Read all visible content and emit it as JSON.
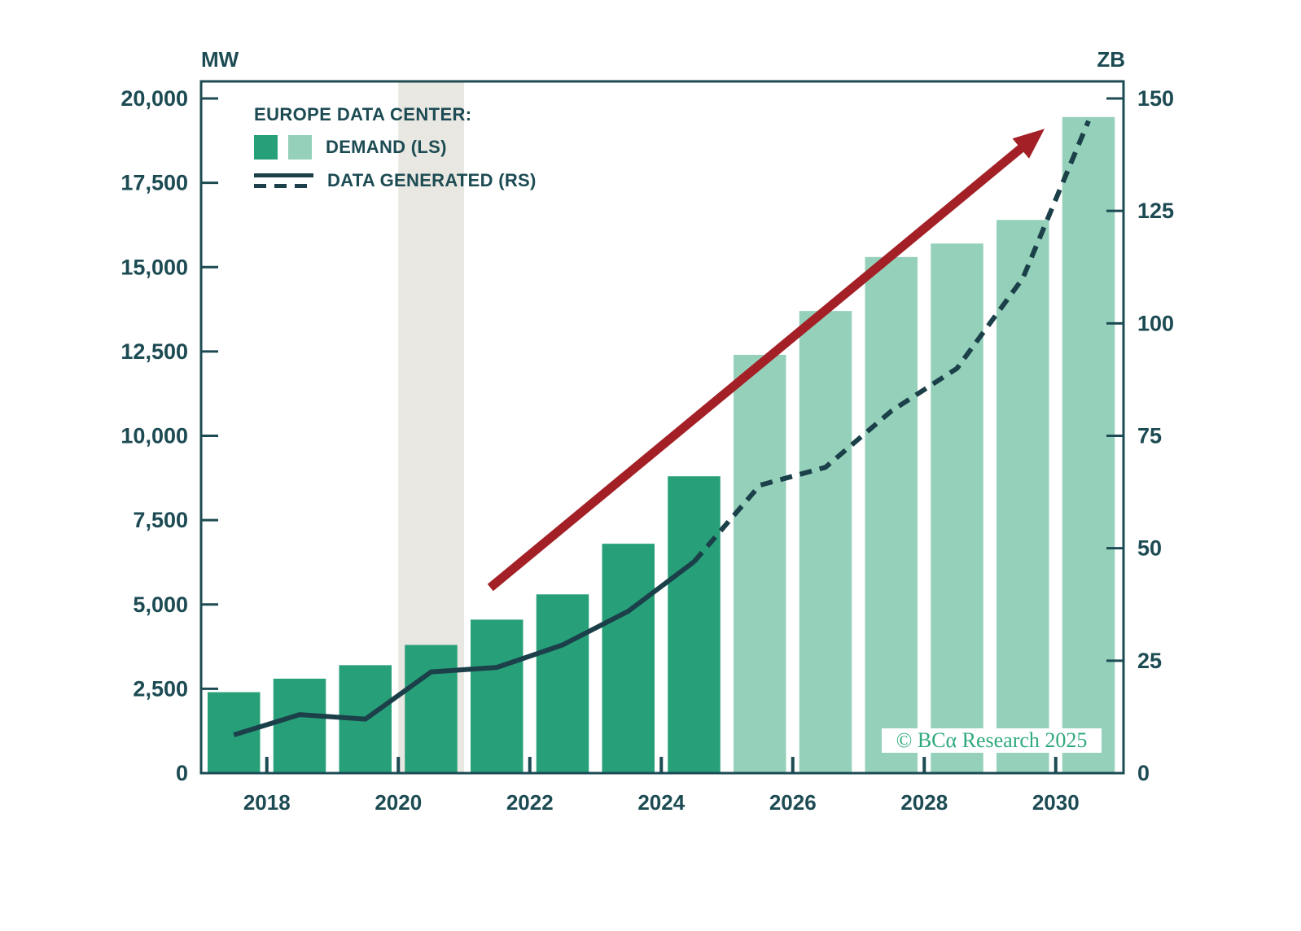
{
  "axes": {
    "left_unit": "MW",
    "right_unit": "ZB"
  },
  "legend": {
    "title": "EUROPE DATA CENTER:",
    "demand_label": "DEMAND (LS)",
    "generated_label": "DATA GENERATED (RS)"
  },
  "watermark": "© BCα Research 2025",
  "colors": {
    "bar_actual": "#27a07a",
    "bar_forecast": "#95d1ba",
    "line": "#1b4049",
    "text": "#1d4b53",
    "arrow_red": "#a32026",
    "band_gray": "#e8e7e1",
    "watermark_green": "#2faa7c",
    "frame": "#1d4b53",
    "background": "#ffffff"
  },
  "chart_data": {
    "type": "bar+line",
    "title": "EUROPE DATA CENTER: DEMAND (LS) vs DATA GENERATED (RS)",
    "years": [
      2017,
      2018,
      2019,
      2020,
      2021,
      2022,
      2023,
      2024,
      2025,
      2026,
      2027,
      2028,
      2029,
      2030
    ],
    "x_tick_years": [
      2018,
      2020,
      2022,
      2024,
      2026,
      2028,
      2030
    ],
    "x_tick_labels": [
      "2018",
      "2020",
      "2022",
      "2024",
      "2026",
      "2028",
      "2030"
    ],
    "left_axis": {
      "unit": "MW",
      "min": 0,
      "max": 20000,
      "tick_values": [
        0,
        2500,
        5000,
        7500,
        10000,
        12500,
        15000,
        17500,
        20000
      ],
      "tick_labels": [
        "0",
        "2,500",
        "5,000",
        "7,500",
        "10,000",
        "12,500",
        "15,000",
        "17,500",
        "20,000"
      ]
    },
    "right_axis": {
      "unit": "ZB",
      "min": 0,
      "max": 150,
      "tick_values": [
        0,
        25,
        50,
        75,
        100,
        125,
        150
      ],
      "tick_labels": [
        "0",
        "25",
        "50",
        "75",
        "100",
        "125",
        "150"
      ]
    },
    "series": [
      {
        "name": "DEMAND (LS)",
        "type": "bar",
        "axis": "left",
        "unit": "MW",
        "values": [
          2400,
          2800,
          3200,
          3800,
          4550,
          5300,
          6800,
          8800,
          12400,
          13700,
          15300,
          15700,
          16400,
          19450
        ],
        "actual_through_year": 2024,
        "forecast_from_year": 2025
      },
      {
        "name": "DATA GENERATED (RS)",
        "type": "line",
        "axis": "right",
        "unit": "ZB",
        "values": [
          8.5,
          13,
          12,
          22.5,
          23.5,
          28.5,
          36,
          47,
          64,
          68,
          80.5,
          90,
          110,
          145
        ],
        "solid_through_year": 2024
      }
    ],
    "shaded_band": {
      "from_year": 2020,
      "to_year": 2021
    },
    "trend_arrow": {
      "from": {
        "year": 2021.4,
        "value_mw": 5500
      },
      "to": {
        "year": 2029.83,
        "value_mw": 19100
      }
    },
    "legend_position": "top-left",
    "grid": false
  }
}
